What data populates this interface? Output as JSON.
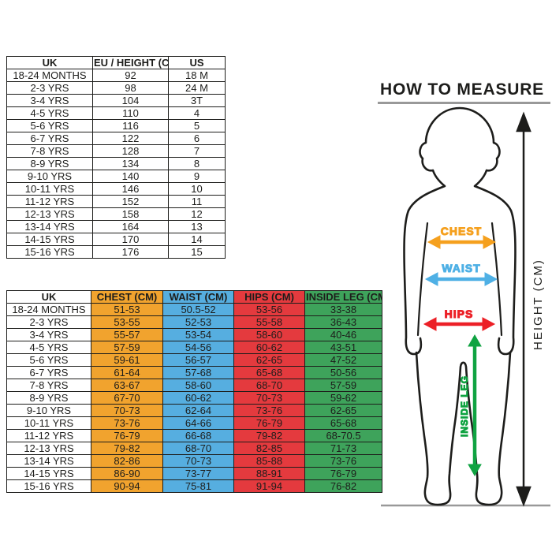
{
  "tables": {
    "size_conversion": {
      "headers": [
        "UK",
        "EU / HEIGHT (CM)",
        "US"
      ],
      "rows": [
        [
          "18-24 MONTHS",
          "92",
          "18 M"
        ],
        [
          "2-3 YRS",
          "98",
          "24 M"
        ],
        [
          "3-4 YRS",
          "104",
          "3T"
        ],
        [
          "4-5 YRS",
          "110",
          "4"
        ],
        [
          "5-6 YRS",
          "116",
          "5"
        ],
        [
          "6-7 YRS",
          "122",
          "6"
        ],
        [
          "7-8 YRS",
          "128",
          "7"
        ],
        [
          "8-9 YRS",
          "134",
          "8"
        ],
        [
          "9-10 YRS",
          "140",
          "9"
        ],
        [
          "10-11 YRS",
          "146",
          "10"
        ],
        [
          "11-12 YRS",
          "152",
          "11"
        ],
        [
          "12-13 YRS",
          "158",
          "12"
        ],
        [
          "13-14 YRS",
          "164",
          "13"
        ],
        [
          "14-15 YRS",
          "170",
          "14"
        ],
        [
          "15-16 YRS",
          "176",
          "15"
        ]
      ],
      "column_colors": [
        "#FFFFFF",
        "#FFFFFF",
        "#FFFFFF"
      ]
    },
    "body_measurements": {
      "headers": [
        "UK",
        "CHEST (CM)",
        "WAIST (CM)",
        "HIPS (CM)",
        "INSIDE LEG (CM)"
      ],
      "column_colors": [
        "#FFFFFF",
        "#F1A32E",
        "#56AEE0",
        "#E43A3E",
        "#3EA35B"
      ],
      "rows": [
        [
          "18-24 MONTHS",
          "51-53",
          "50.5-52",
          "53-56",
          "33-38"
        ],
        [
          "2-3 YRS",
          "53-55",
          "52-53",
          "55-58",
          "36-43"
        ],
        [
          "3-4 YRS",
          "55-57",
          "53-54",
          "58-60",
          "40-46"
        ],
        [
          "4-5 YRS",
          "57-59",
          "54-56",
          "60-62",
          "43-51"
        ],
        [
          "5-6 YRS",
          "59-61",
          "56-57",
          "62-65",
          "47-52"
        ],
        [
          "6-7 YRS",
          "61-64",
          "57-68",
          "65-68",
          "50-56"
        ],
        [
          "7-8 YRS",
          "63-67",
          "58-60",
          "68-70",
          "57-59"
        ],
        [
          "8-9 YRS",
          "67-70",
          "60-62",
          "70-73",
          "59-62"
        ],
        [
          "9-10 YRS",
          "70-73",
          "62-64",
          "73-76",
          "62-65"
        ],
        [
          "10-11 YRS",
          "73-76",
          "64-66",
          "76-79",
          "65-68"
        ],
        [
          "11-12 YRS",
          "76-79",
          "66-68",
          "79-82",
          "68-70.5"
        ],
        [
          "12-13 YRS",
          "79-82",
          "68-70",
          "82-85",
          "71-73"
        ],
        [
          "13-14 YRS",
          "82-86",
          "70-73",
          "85-88",
          "73-76"
        ],
        [
          "14-15 YRS",
          "86-90",
          "73-77",
          "88-91",
          "76-79"
        ],
        [
          "15-16 YRS",
          "90-94",
          "75-81",
          "91-94",
          "76-82"
        ]
      ]
    }
  },
  "measure_guide": {
    "title": "HOW TO MEASURE",
    "chest_label": "CHEST",
    "waist_label": "WAIST",
    "hips_label": "HIPS",
    "inside_leg_label": "INSIDE LEG",
    "height_label": "HEIGHT (CM)"
  },
  "colors": {
    "chest": "#F5A01E",
    "waist": "#4FB0E5",
    "hips": "#EC2027",
    "inside-leg": "#0FA341",
    "ink": "#1D1D1B",
    "guide-line": "#999999"
  }
}
